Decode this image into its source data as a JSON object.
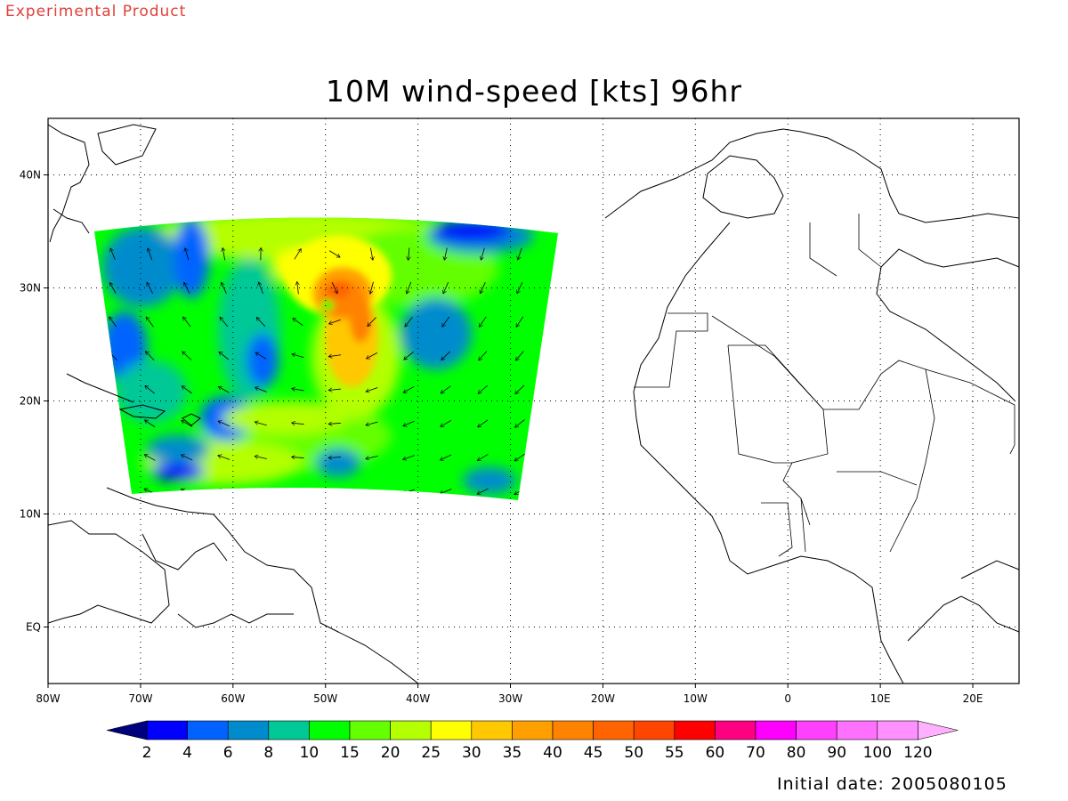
{
  "header": {
    "product_label": "Experimental Product",
    "title": "10M wind-speed [kts] 96hr"
  },
  "map": {
    "projection": "lat-lon",
    "lon_range": [
      -80,
      25
    ],
    "lat_range": [
      -5,
      45
    ],
    "grid": true,
    "lon_ticks": [
      "80W",
      "70W",
      "60W",
      "50W",
      "40W",
      "30W",
      "20W",
      "10W",
      "0",
      "10E",
      "20E"
    ],
    "lat_ticks": [
      "EQ",
      "10N",
      "20N",
      "30N",
      "40N"
    ],
    "field": "10M wind-speed",
    "units": "kts",
    "forecast_hour": "96hr",
    "storm_center": {
      "lon": -50,
      "lat": 28.5,
      "max_wind_kts": "50-55"
    }
  },
  "colorbar": {
    "levels": [
      "2",
      "4",
      "6",
      "8",
      "10",
      "15",
      "20",
      "25",
      "30",
      "35",
      "40",
      "45",
      "50",
      "55",
      "60",
      "70",
      "80",
      "90",
      "100",
      "120"
    ],
    "colors": [
      "#00007f",
      "#0000ff",
      "#0063ff",
      "#008ccc",
      "#00c896",
      "#00ff00",
      "#64ff00",
      "#b4ff00",
      "#ffff00",
      "#ffc800",
      "#ffa000",
      "#ff8200",
      "#ff6400",
      "#ff4600",
      "#ff0000",
      "#ff0082",
      "#ff00ff",
      "#ff40ff",
      "#ff70ff",
      "#ff90ff",
      "#ffb0ff"
    ]
  },
  "footer": {
    "initial_date": "Initial date: 2005080105"
  }
}
